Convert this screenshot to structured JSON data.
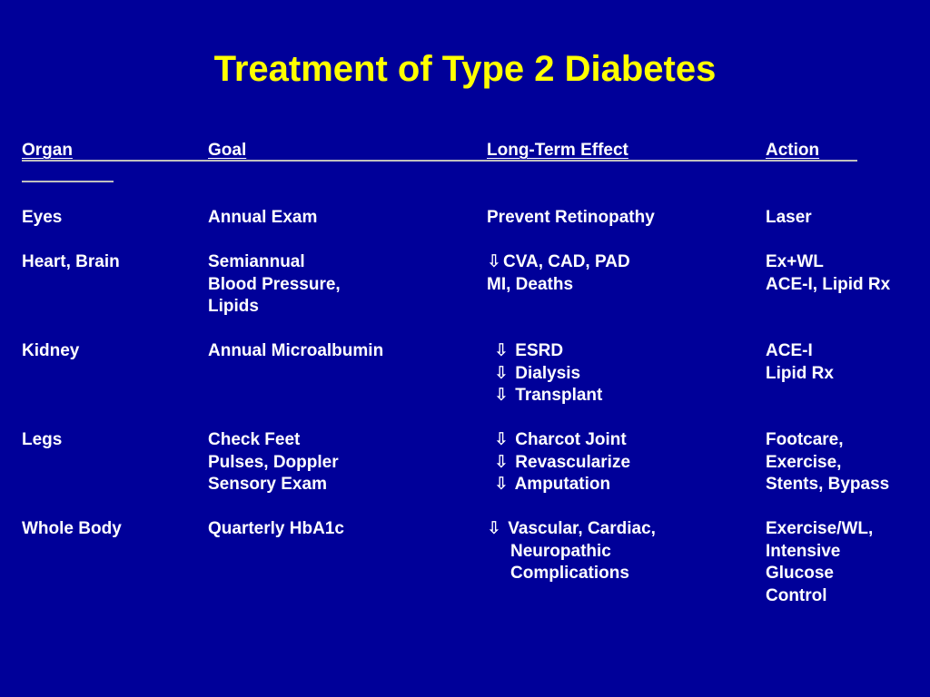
{
  "title": "Treatment of Type 2 Diabetes",
  "colors": {
    "background": "#000099",
    "title": "#ffff00",
    "text": "#ffffff",
    "rule": "#bfbfbf"
  },
  "arrow_icon": "down-arrow-icon",
  "arrow_glyph": "⇩",
  "headers": {
    "organ": "Organ",
    "goal": "Goal",
    "effect": "Long-Term Effect",
    "action": "Action"
  },
  "rows": [
    {
      "organ": "Eyes",
      "goal": [
        "Annual Exam"
      ],
      "effect": [
        "Prevent Retinopathy"
      ],
      "action": [
        "Laser"
      ]
    },
    {
      "organ": "Heart, Brain",
      "goal": [
        "Semiannual",
        "Blood Pressure,",
        "Lipids"
      ],
      "effect": [
        "CVA, CAD, PAD",
        "MI, Deaths"
      ],
      "action": [
        "Ex+WL",
        "ACE-I, Lipid Rx"
      ]
    },
    {
      "organ": "Kidney",
      "goal": [
        "Annual Microalbumin"
      ],
      "effect": [
        "ESRD",
        "Dialysis",
        "Transplant"
      ],
      "action": [
        "ACE-I",
        "Lipid Rx"
      ]
    },
    {
      "organ": "Legs",
      "goal": [
        "Check Feet",
        "Pulses, Doppler",
        "Sensory Exam"
      ],
      "effect": [
        "Charcot Joint",
        "Revascularize",
        "Amputation"
      ],
      "action": [
        "Footcare,",
        "Exercise,",
        "Stents, Bypass"
      ]
    },
    {
      "organ": "Whole Body",
      "goal": [
        "Quarterly HbA1c"
      ],
      "effect": [
        "Vascular, Cardiac,",
        "Neuropathic",
        "Complications"
      ],
      "action": [
        "Exercise/WL,",
        "Intensive",
        "Glucose",
        "Control"
      ]
    }
  ]
}
